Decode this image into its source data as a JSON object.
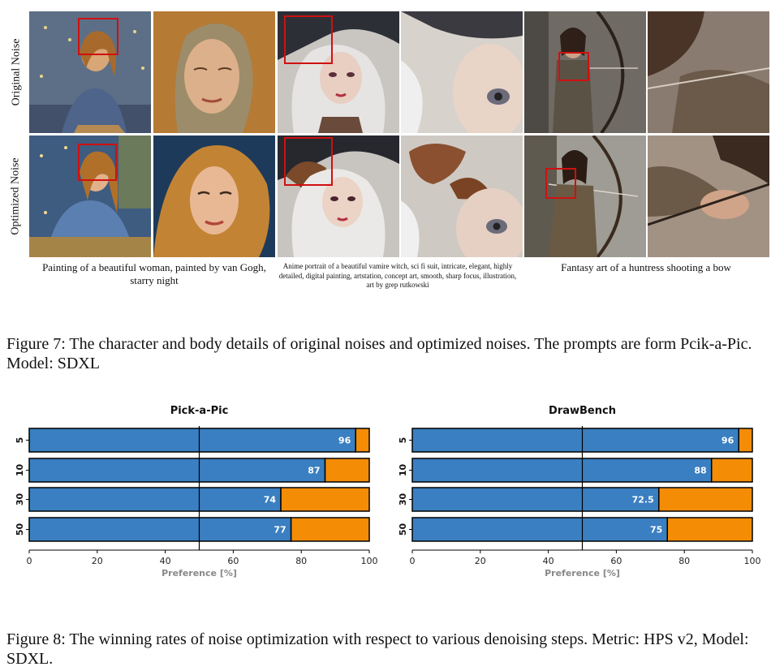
{
  "figure7": {
    "row_labels": [
      "Original Noise",
      "Optimized Noise"
    ],
    "prompts": [
      "Painting of a beautiful woman, painted by van Gogh, starry night",
      "Anime portrait of a beautiful vamire witch, sci fi suit, intricate, elegant, highly detailed, digital painting, artstation, concept art, smooth, sharp focus, illustration, art by grep rutkowski",
      "Fantasy art of a huntress shooting a bow"
    ],
    "caption": "Figure 7: The character and body details of original noises and optimized noises. The prompts are form Pcik-a-Pic. Model: SDXL"
  },
  "figure8": {
    "caption": "Figure 8: The winning rates of noise optimization with respect to various denoising steps. Metric: HPS v2, Model: SDXL.",
    "colors": {
      "win": "#3a7fc1",
      "lose": "#f48c06"
    }
  },
  "chart_data": [
    {
      "type": "bar",
      "orientation": "horizontal-stacked",
      "title": "Pick-a-Pic",
      "xlabel": "Preference [%]",
      "ylabel": "",
      "categories": [
        "5",
        "10",
        "30",
        "50"
      ],
      "values": [
        96,
        87,
        74,
        77
      ],
      "value_labels": [
        "96",
        "87",
        "74",
        "77"
      ],
      "xlim": [
        0,
        100
      ],
      "xticks": [
        "0",
        "20",
        "40",
        "60",
        "80",
        "100"
      ],
      "reference_line": 50
    },
    {
      "type": "bar",
      "orientation": "horizontal-stacked",
      "title": "DrawBench",
      "xlabel": "Preference [%]",
      "ylabel": "",
      "categories": [
        "5",
        "10",
        "30",
        "50"
      ],
      "values": [
        96,
        88,
        72.5,
        75
      ],
      "value_labels": [
        "96",
        "88",
        "72.5",
        "75"
      ],
      "xlim": [
        0,
        100
      ],
      "xticks": [
        "0",
        "20",
        "40",
        "60",
        "80",
        "100"
      ],
      "reference_line": 50
    }
  ]
}
